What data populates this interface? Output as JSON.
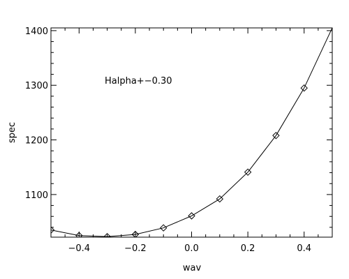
{
  "chart_data": {
    "type": "line",
    "title": "",
    "xlabel": "wav",
    "ylabel": "spec",
    "xlim": [
      -0.5,
      0.5
    ],
    "ylim": [
      1022,
      1405
    ],
    "grid": false,
    "legend": "none",
    "x_ticks": [
      -0.4,
      -0.2,
      0.0,
      0.2,
      0.4
    ],
    "x_tick_labels": [
      "−0.4",
      "−0.2",
      "0.0",
      "0.2",
      "0.4"
    ],
    "y_ticks": [
      1100,
      1200,
      1300,
      1400
    ],
    "y_tick_labels": [
      "1100",
      "1200",
      "1300",
      "1400"
    ],
    "annotation": "Halpha+−0.30",
    "line_color": "#000000",
    "series": [
      {
        "marker": "diamond",
        "points": [
          [
            -0.5,
            1035
          ],
          [
            -0.4,
            1025
          ],
          [
            -0.3,
            1023
          ],
          [
            -0.2,
            1027
          ],
          [
            -0.1,
            1039
          ],
          [
            0.0,
            1061
          ],
          [
            0.1,
            1092
          ],
          [
            0.2,
            1141
          ],
          [
            0.3,
            1208
          ],
          [
            0.4,
            1295
          ]
        ],
        "curve": [
          [
            -0.5,
            1035
          ],
          [
            -0.4,
            1025
          ],
          [
            -0.3,
            1023
          ],
          [
            -0.2,
            1027
          ],
          [
            -0.1,
            1039
          ],
          [
            0.0,
            1061
          ],
          [
            0.1,
            1092
          ],
          [
            0.2,
            1141
          ],
          [
            0.3,
            1208
          ],
          [
            0.4,
            1295
          ],
          [
            0.5,
            1405
          ]
        ]
      }
    ]
  }
}
